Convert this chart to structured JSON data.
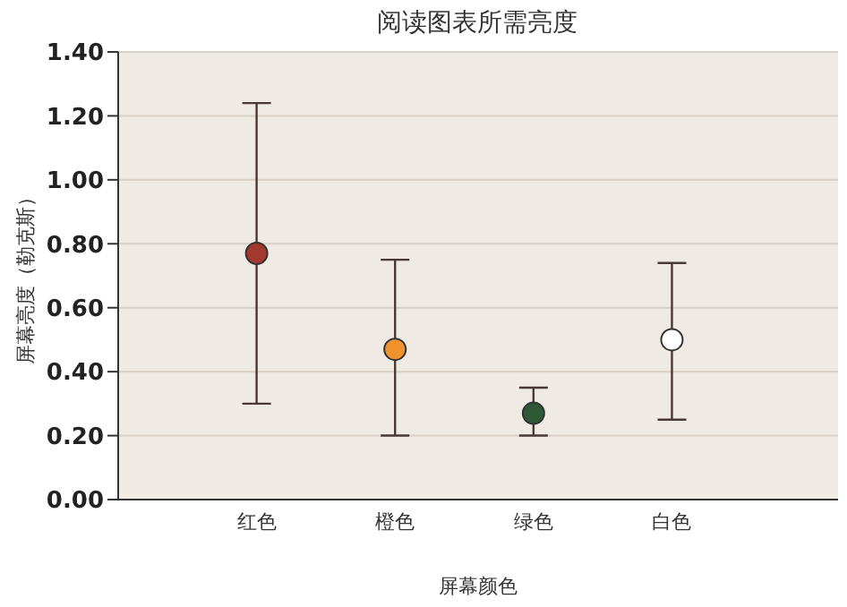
{
  "chart_data": {
    "type": "scatter",
    "title": "阅读图表所需亮度",
    "xlabel": "屏幕颜色",
    "ylabel": "屏幕亮度（勒克斯）",
    "categories": [
      "红色",
      "橙色",
      "绿色",
      "白色"
    ],
    "values": [
      0.77,
      0.47,
      0.27,
      0.5
    ],
    "colors": [
      "#a3382f",
      "#f0922e",
      "#2d5a35",
      "#ffffff"
    ],
    "errors": [
      [
        0.3,
        1.24
      ],
      [
        0.2,
        0.75
      ],
      [
        0.2,
        0.35
      ],
      [
        0.25,
        0.74
      ]
    ],
    "ylim": [
      0,
      1.4
    ],
    "yticks": [
      {
        "value": 0,
        "label": "0.00"
      },
      {
        "value": 0.2,
        "label": "0.20"
      },
      {
        "value": 0.4,
        "label": "0.40"
      },
      {
        "value": 0.6,
        "label": "0.60"
      },
      {
        "value": 0.8,
        "label": "0.80"
      },
      {
        "value": 1.0,
        "label": "1.00"
      },
      {
        "value": 1.2,
        "label": "1.20"
      },
      {
        "value": 1.4,
        "label": "1.40"
      }
    ],
    "grid": "y",
    "marker": "circle"
  }
}
